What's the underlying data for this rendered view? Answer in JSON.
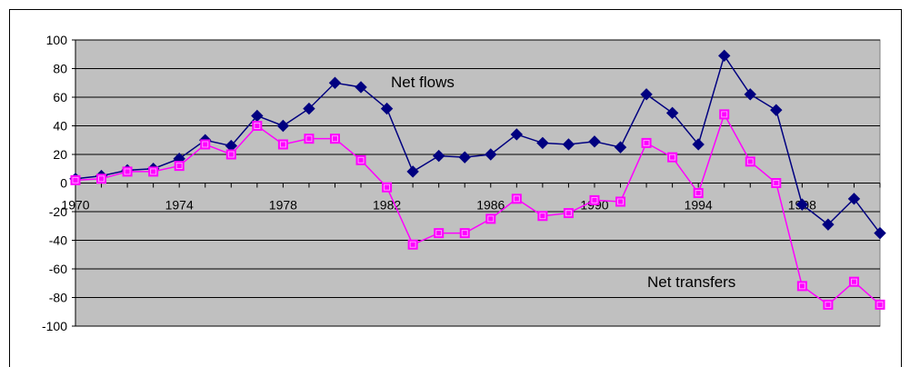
{
  "chart_data": {
    "type": "line",
    "title": "",
    "xlabel": "",
    "ylabel": "",
    "ylim": [
      -100,
      100
    ],
    "y_ticks": [
      100,
      80,
      60,
      40,
      20,
      0,
      -20,
      -40,
      -60,
      -80,
      -100
    ],
    "x_range": [
      1970,
      2001
    ],
    "x_tick_labels": [
      "1970",
      "1974",
      "1978",
      "1982",
      "1986",
      "1990",
      "1994",
      "1998"
    ],
    "grid": true,
    "background_color": "#c0c0c0",
    "x": [
      1970,
      1971,
      1972,
      1973,
      1974,
      1975,
      1976,
      1977,
      1978,
      1979,
      1980,
      1981,
      1982,
      1983,
      1984,
      1985,
      1986,
      1987,
      1988,
      1989,
      1990,
      1991,
      1992,
      1993,
      1994,
      1995,
      1996,
      1997,
      1998,
      1999,
      2000,
      2001
    ],
    "series": [
      {
        "name": "Net flows",
        "color": "#000080",
        "marker": "diamond",
        "values": [
          3,
          5,
          9,
          10,
          17,
          30,
          26,
          47,
          40,
          52,
          70,
          67,
          52,
          8,
          19,
          18,
          20,
          34,
          28,
          27,
          29,
          25,
          62,
          49,
          27,
          89,
          62,
          51,
          -15,
          -29,
          -11,
          -35
        ]
      },
      {
        "name": "Net transfers",
        "color": "#ff00ff",
        "marker": "square",
        "values": [
          2,
          3,
          8,
          8,
          12,
          27,
          20,
          40,
          27,
          31,
          31,
          16,
          -3,
          -43,
          -35,
          -35,
          -25,
          -11,
          -23,
          -21,
          -12,
          -13,
          28,
          18,
          -7,
          48,
          15,
          0,
          -72,
          -85,
          -69,
          -85
        ]
      }
    ],
    "annotations": [
      {
        "text": "Net flows",
        "series": "Net flows"
      },
      {
        "text": "Net transfers",
        "series": "Net transfers"
      }
    ]
  }
}
